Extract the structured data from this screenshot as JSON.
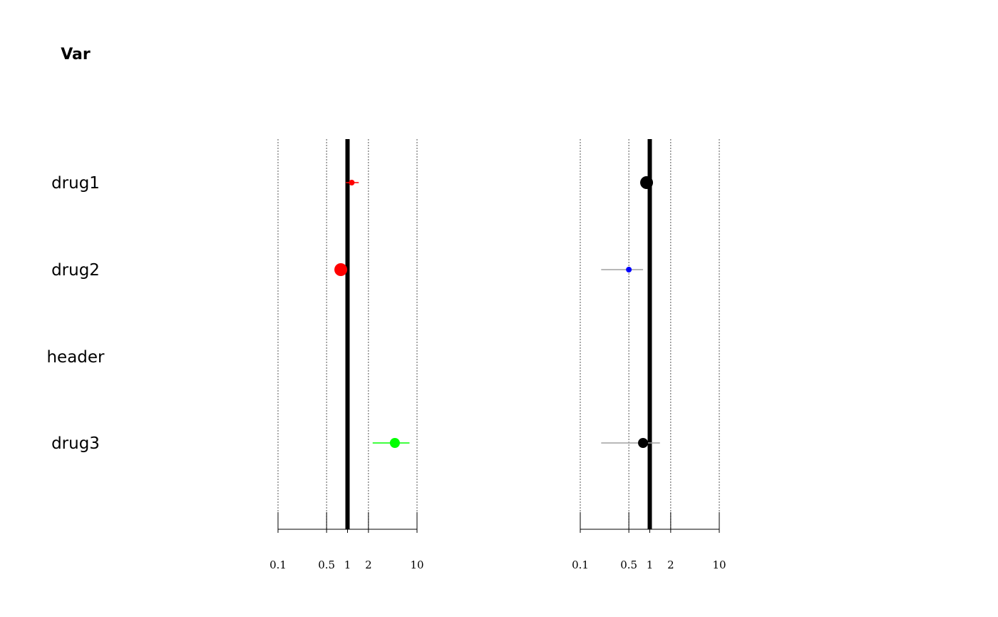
{
  "column_header": "Var",
  "rows": [
    "drug1",
    "drug2",
    "header",
    "drug3"
  ],
  "chart_data": [
    {
      "type": "scatter",
      "subtype": "forest",
      "x_scale": "log",
      "xlim": [
        0.1,
        10
      ],
      "reference_line": 1,
      "grid": true,
      "xticks": [
        0.1,
        0.5,
        1,
        2,
        10
      ],
      "xtick_labels": [
        "0.1",
        "0.5",
        "1",
        "2",
        "10"
      ],
      "points": [
        {
          "row": "drug1",
          "estimate": 1.15,
          "lower": 0.95,
          "upper": 1.45,
          "color": "#ff0000",
          "size": "small"
        },
        {
          "row": "drug2",
          "estimate": 0.8,
          "lower": 0.8,
          "upper": 0.8,
          "color": "#ff0000",
          "size": "large"
        },
        {
          "row": "drug3",
          "estimate": 4.8,
          "lower": 2.3,
          "upper": 7.8,
          "color": "#00ff00",
          "size": "medium"
        }
      ]
    },
    {
      "type": "scatter",
      "subtype": "forest",
      "x_scale": "log",
      "xlim": [
        0.1,
        10
      ],
      "reference_line": 1,
      "grid": true,
      "xticks": [
        0.1,
        0.5,
        1,
        2,
        10
      ],
      "xtick_labels": [
        "0.1",
        "0.5",
        "1",
        "2",
        "10"
      ],
      "points": [
        {
          "row": "drug1",
          "estimate": 0.9,
          "lower": 0.9,
          "upper": 0.9,
          "color": "#000000",
          "ci_color": "#a0a0a0",
          "size": "large"
        },
        {
          "row": "drug2",
          "estimate": 0.5,
          "lower": 0.2,
          "upper": 0.8,
          "color": "#0000ff",
          "ci_color": "#a0a0a0",
          "size": "small"
        },
        {
          "row": "drug3",
          "estimate": 0.8,
          "lower": 0.2,
          "upper": 1.4,
          "color": "#000000",
          "ci_color": "#a0a0a0",
          "size": "medium"
        }
      ]
    }
  ]
}
